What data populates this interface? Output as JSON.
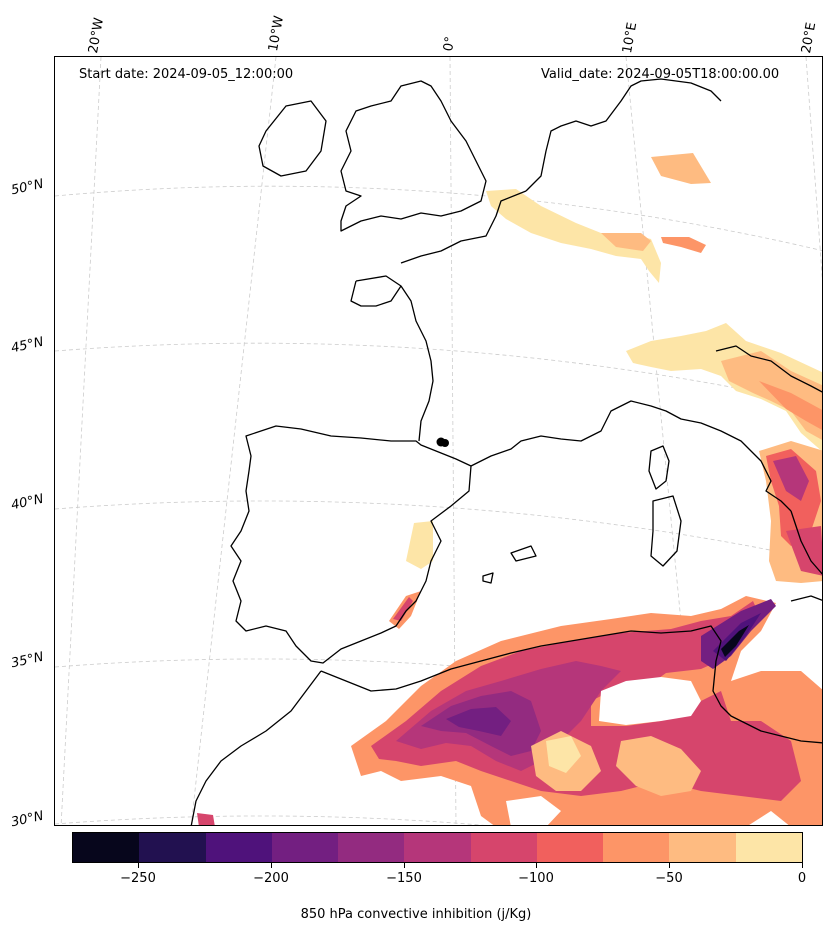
{
  "header": {
    "start_date": "Start date: 2024-09-05_12:00:00",
    "valid_date": "Valid_date: 2024-09-05T18:00:00.00"
  },
  "lon_labels": [
    "20°W",
    "10°W",
    "0°",
    "10°E",
    "20°E"
  ],
  "lat_labels": [
    "50°N",
    "45°N",
    "40°N",
    "35°N",
    "30°N"
  ],
  "colorbar": {
    "caption": "850 hPa convective inhibition (j/Kg)",
    "tick_labels": [
      "−250",
      "−200",
      "−150",
      "−100",
      "−50",
      "0"
    ],
    "levels": [
      -275,
      -250,
      -225,
      -200,
      -175,
      -150,
      -125,
      -100,
      -75,
      -50,
      -25,
      0
    ],
    "colors": [
      "#07061c",
      "#221150",
      "#4f127b",
      "#731f81",
      "#932b80",
      "#b5367a",
      "#d6456c",
      "#f1605d",
      "#fd9567",
      "#febb81",
      "#fde5a7"
    ]
  },
  "map": {
    "field": "850 hPa convective inhibition",
    "projection": "conic",
    "gridlines": "dashed grey",
    "coastlines": "black"
  }
}
